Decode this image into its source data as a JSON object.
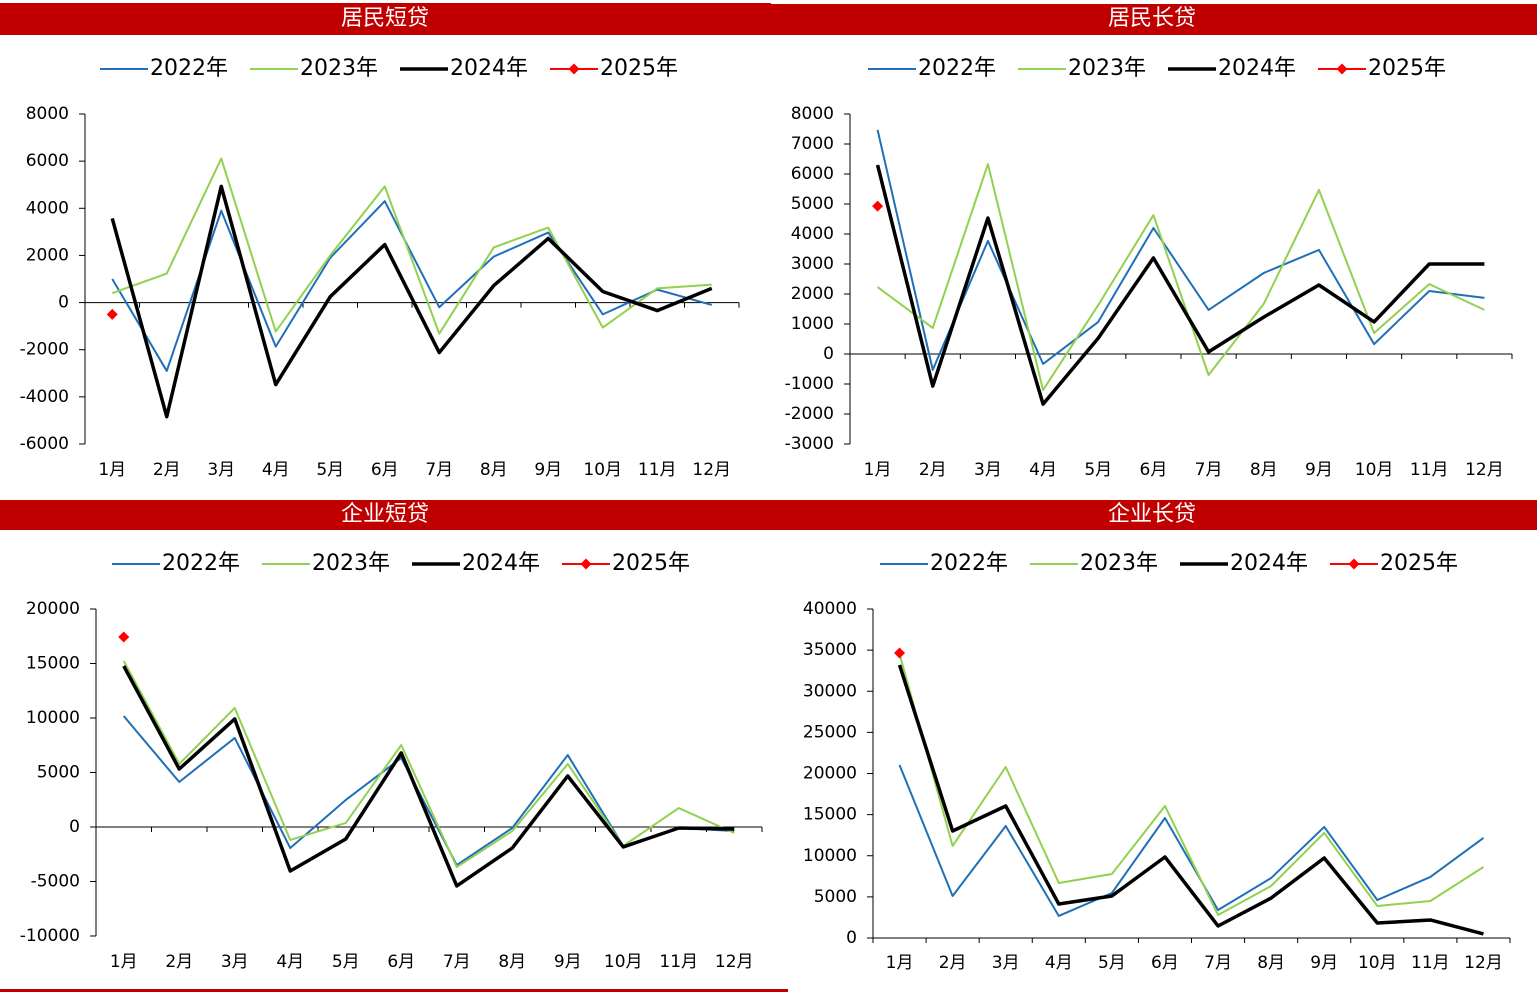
{
  "chart_data": [
    {
      "type": "line",
      "title": "居民短贷",
      "categories": [
        "1月",
        "2月",
        "3月",
        "4月",
        "5月",
        "6月",
        "7月",
        "8月",
        "9月",
        "10月",
        "11月",
        "12月"
      ],
      "series": [
        {
          "name": "2022年",
          "color": "#1f70b8",
          "values": [
            1000,
            -2900,
            3900,
            -1870,
            1900,
            4300,
            -200,
            1950,
            2970,
            -500,
            550,
            -100
          ]
        },
        {
          "name": "2023年",
          "color": "#92d050",
          "values": [
            400,
            1230,
            6110,
            -1230,
            2000,
            4930,
            -1320,
            2340,
            3180,
            -1060,
            600,
            760
          ]
        },
        {
          "name": "2024年",
          "color": "#000000",
          "values": [
            3570,
            -4840,
            4930,
            -3480,
            250,
            2460,
            -2120,
            720,
            2720,
            470,
            -340,
            600
          ]
        },
        {
          "name": "2025年",
          "color": "#ff0000",
          "marker": "diamond",
          "values": [
            -500,
            null,
            null,
            null,
            null,
            null,
            null,
            null,
            null,
            null,
            null,
            null
          ]
        }
      ],
      "ylim": [
        -6000,
        8000
      ],
      "yticks": [
        -6000,
        -4000,
        -2000,
        0,
        2000,
        4000,
        6000,
        8000
      ]
    },
    {
      "type": "line",
      "title": "居民长贷",
      "categories": [
        "1月",
        "2月",
        "3月",
        "4月",
        "5月",
        "6月",
        "7月",
        "8月",
        "9月",
        "10月",
        "11月",
        "12月"
      ],
      "series": [
        {
          "name": "2022年",
          "color": "#1f70b8",
          "values": [
            7470,
            -530,
            3770,
            -330,
            1070,
            4200,
            1470,
            2700,
            3470,
            330,
            2100,
            1870
          ]
        },
        {
          "name": "2023年",
          "color": "#92d050",
          "values": [
            2230,
            870,
            6330,
            -1200,
            1630,
            4630,
            -700,
            1670,
            5470,
            700,
            2330,
            1470
          ]
        },
        {
          "name": "2024年",
          "color": "#000000",
          "values": [
            6300,
            -1070,
            4530,
            -1670,
            530,
            3200,
            70,
            1230,
            2300,
            1070,
            3000,
            3000
          ]
        },
        {
          "name": "2025年",
          "color": "#ff0000",
          "marker": "diamond",
          "values": [
            4930,
            null,
            null,
            null,
            null,
            null,
            null,
            null,
            null,
            null,
            null,
            null
          ]
        }
      ],
      "ylim": [
        -3000,
        8000
      ],
      "yticks": [
        -3000,
        -2000,
        -1000,
        0,
        1000,
        2000,
        3000,
        4000,
        5000,
        6000,
        7000,
        8000
      ]
    },
    {
      "type": "line",
      "title": "企业短贷",
      "categories": [
        "1月",
        "2月",
        "3月",
        "4月",
        "5月",
        "6月",
        "7月",
        "8月",
        "9月",
        "10月",
        "11月",
        "12月"
      ],
      "series": [
        {
          "name": "2022年",
          "color": "#1f70b8",
          "values": [
            10180,
            4130,
            8170,
            -1930,
            2480,
            6330,
            -3490,
            -90,
            6600,
            -1740,
            -90,
            -370
          ]
        },
        {
          "name": "2023年",
          "color": "#92d050",
          "values": [
            15230,
            5780,
            10920,
            -1190,
            370,
            7520,
            -3670,
            -370,
            5780,
            -1740,
            1740,
            -550
          ]
        },
        {
          "name": "2024年",
          "color": "#000000",
          "values": [
            14770,
            5320,
            9910,
            -4040,
            -1100,
            6790,
            -5410,
            -1930,
            4680,
            -1830,
            -90,
            -180
          ]
        },
        {
          "name": "2025年",
          "color": "#ff0000",
          "marker": "diamond",
          "values": [
            17430,
            null,
            null,
            null,
            null,
            null,
            null,
            null,
            null,
            null,
            null,
            null
          ]
        }
      ],
      "ylim": [
        -10000,
        20000
      ],
      "yticks": [
        -10000,
        -5000,
        0,
        5000,
        10000,
        15000,
        20000
      ]
    },
    {
      "type": "line",
      "title": "企业长贷",
      "categories": [
        "1月",
        "2月",
        "3月",
        "4月",
        "5月",
        "6月",
        "7月",
        "8月",
        "9月",
        "10月",
        "11月",
        "12月"
      ],
      "series": [
        {
          "name": "2022年",
          "color": "#1f70b8",
          "values": [
            21030,
            5110,
            13620,
            2680,
            5470,
            14590,
            3400,
            7290,
            13500,
            4620,
            7420,
            12160
          ]
        },
        {
          "name": "2023年",
          "color": "#92d050",
          "values": [
            34530,
            11190,
            20790,
            6690,
            7780,
            16050,
            2800,
            6320,
            12770,
            3890,
            4500,
            8630
          ]
        },
        {
          "name": "2024年",
          "color": "#000000",
          "values": [
            33190,
            13010,
            16050,
            4130,
            5110,
            9850,
            1460,
            4860,
            9730,
            1820,
            2190,
            490
          ]
        },
        {
          "name": "2025年",
          "color": "#ff0000",
          "marker": "diamond",
          "values": [
            34650,
            null,
            null,
            null,
            null,
            null,
            null,
            null,
            null,
            null,
            null,
            null
          ]
        }
      ],
      "ylim": [
        0,
        40000
      ],
      "yticks": [
        0,
        5000,
        10000,
        15000,
        20000,
        25000,
        30000,
        35000,
        40000
      ]
    }
  ]
}
